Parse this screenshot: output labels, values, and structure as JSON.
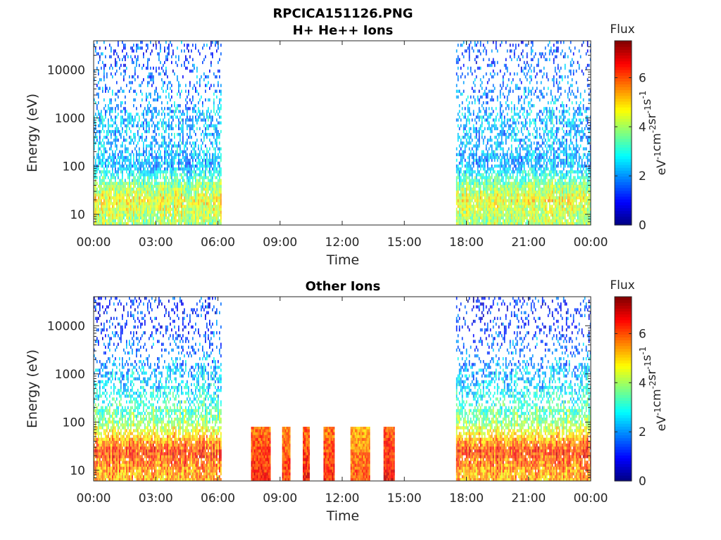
{
  "figure": {
    "title_line1": "RPCICA151126.PNG"
  },
  "chart_data": [
    {
      "type": "heatmap",
      "title": "H+ He++ Ions",
      "xlabel": "Time",
      "ylabel": "Energy (eV)",
      "x_tick_labels": [
        "00:00",
        "03:00",
        "06:00",
        "09:00",
        "12:00",
        "15:00",
        "18:00",
        "21:00",
        "00:00"
      ],
      "x_tick_hours": [
        0,
        3,
        6,
        9,
        12,
        15,
        18,
        21,
        24
      ],
      "xlim_hours": [
        0,
        24
      ],
      "y_scale": "log",
      "y_tick_labels": [
        "10",
        "100",
        "1000",
        "10000"
      ],
      "y_tick_values": [
        10,
        100,
        1000,
        10000
      ],
      "ylim": [
        6,
        40000
      ],
      "colorbar": {
        "title": "Flux",
        "unit_base": [
          "eV",
          "cm",
          "sr",
          "s"
        ],
        "unit_exp": [
          "-1",
          "-2",
          "-1",
          "-1"
        ],
        "tick_labels": [
          "0",
          "2",
          "4",
          "6"
        ],
        "tick_values": [
          0,
          2,
          4,
          6
        ],
        "range": [
          0,
          7.5
        ],
        "colormap": "jet"
      },
      "data_intervals_hours": [
        [
          0,
          6.2
        ],
        [
          17.5,
          24
        ]
      ],
      "flux_profile_by_energy_eV": [
        {
          "energy": 8,
          "flux": 4.0
        },
        {
          "energy": 20,
          "flux": 4.6
        },
        {
          "energy": 40,
          "flux": 3.8
        },
        {
          "energy": 100,
          "flux": 2.2
        },
        {
          "energy": 1000,
          "flux": 2.3
        },
        {
          "energy": 15000,
          "flux": 1.5
        }
      ]
    },
    {
      "type": "heatmap",
      "title": "Other Ions",
      "xlabel": "Time",
      "ylabel": "Energy (eV)",
      "x_tick_labels": [
        "00:00",
        "03:00",
        "06:00",
        "09:00",
        "12:00",
        "15:00",
        "18:00",
        "21:00",
        "00:00"
      ],
      "x_tick_hours": [
        0,
        3,
        6,
        9,
        12,
        15,
        18,
        21,
        24
      ],
      "xlim_hours": [
        0,
        24
      ],
      "y_scale": "log",
      "y_tick_labels": [
        "10",
        "100",
        "1000",
        "10000"
      ],
      "y_tick_values": [
        10,
        100,
        1000,
        10000
      ],
      "ylim": [
        6,
        40000
      ],
      "colorbar": {
        "title": "Flux",
        "unit_base": [
          "eV",
          "cm",
          "sr",
          "s"
        ],
        "unit_exp": [
          "-1",
          "-2",
          "-1",
          "-1"
        ],
        "tick_labels": [
          "0",
          "2",
          "4",
          "6"
        ],
        "tick_values": [
          0,
          2,
          4,
          6
        ],
        "range": [
          0,
          7.5
        ],
        "colormap": "jet"
      },
      "data_intervals_hours": [
        [
          0,
          6.2
        ],
        [
          17.5,
          24
        ]
      ],
      "flux_profile_by_energy_eV": [
        {
          "energy": 8,
          "flux": 5.3
        },
        {
          "energy": 25,
          "flux": 6.2
        },
        {
          "energy": 45,
          "flux": 5.2
        },
        {
          "energy": 100,
          "flux": 3.8
        },
        {
          "energy": 500,
          "flux": 2.6
        },
        {
          "energy": 10000,
          "flux": 1.2
        }
      ],
      "bursts": [
        {
          "t_start": 7.6,
          "t_end": 8.5,
          "e_max": 80,
          "flux": 6.5
        },
        {
          "t_start": 9.1,
          "t_end": 9.5,
          "e_max": 80,
          "flux": 6.3
        },
        {
          "t_start": 10.1,
          "t_end": 10.4,
          "e_max": 80,
          "flux": 6.6
        },
        {
          "t_start": 11.1,
          "t_end": 11.6,
          "e_max": 80,
          "flux": 6.4
        },
        {
          "t_start": 12.4,
          "t_end": 13.3,
          "e_max": 80,
          "flux": 6.0
        },
        {
          "t_start": 14.0,
          "t_end": 14.5,
          "e_max": 80,
          "flux": 6.7
        }
      ]
    }
  ]
}
